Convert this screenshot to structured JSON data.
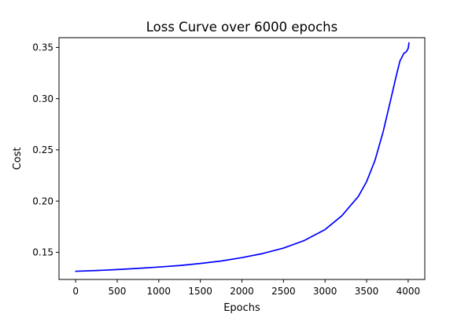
{
  "chart_data": {
    "type": "line",
    "title": "Loss Curve over 6000 epochs",
    "xlabel": "Epochs",
    "ylabel": "Cost",
    "xlim": [
      -200,
      4200
    ],
    "ylim": [
      0.1235,
      0.3595
    ],
    "xticks": [
      0,
      500,
      1000,
      1500,
      2000,
      2500,
      3000,
      3500,
      4000
    ],
    "yticks": [
      0.15,
      0.2,
      0.25,
      0.3,
      0.35
    ],
    "ytick_labels": [
      "0.15",
      "0.20",
      "0.25",
      "0.30",
      "0.35"
    ],
    "grid": false,
    "series": [
      {
        "color": "#0000ff",
        "x": [
          0,
          250,
          500,
          750,
          1000,
          1250,
          1500,
          1750,
          2000,
          2250,
          2500,
          2750,
          3000,
          3200,
          3400,
          3500,
          3600,
          3700,
          3800,
          3850,
          3900,
          3950,
          3975,
          4000,
          4010
        ],
        "y": [
          0.1315,
          0.1322,
          0.1332,
          0.1343,
          0.1356,
          0.1371,
          0.1391,
          0.1415,
          0.1448,
          0.1488,
          0.1541,
          0.1615,
          0.1722,
          0.1855,
          0.2045,
          0.219,
          0.2395,
          0.268,
          0.3025,
          0.32,
          0.3365,
          0.3445,
          0.3455,
          0.349,
          0.3545
        ]
      }
    ]
  }
}
